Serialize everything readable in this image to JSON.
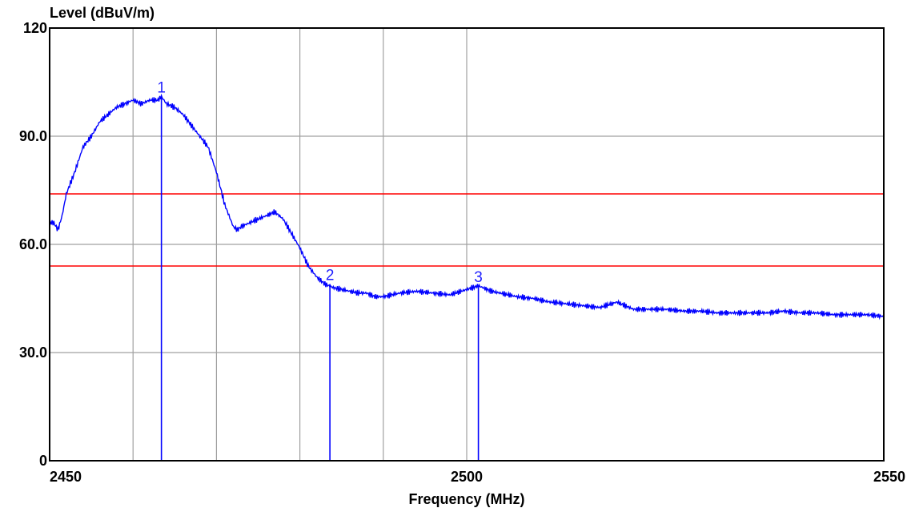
{
  "chart_data": {
    "type": "line",
    "xlabel": "Frequency (MHz)",
    "ylabel": "Level (dBuV/m)",
    "xlim": [
      2450,
      2550
    ],
    "ylim": [
      0,
      120
    ],
    "x_ticks": [
      {
        "value": 2450,
        "label": "2450"
      },
      {
        "value": 2500,
        "label": "2500"
      },
      {
        "value": 2550,
        "label": "2550"
      }
    ],
    "y_ticks": [
      {
        "value": 0,
        "label": "0"
      },
      {
        "value": 30,
        "label": "30.0"
      },
      {
        "value": 60,
        "label": "60.0"
      },
      {
        "value": 90,
        "label": "90.0"
      },
      {
        "value": 120,
        "label": "120"
      }
    ],
    "x_grid": [
      2460,
      2470,
      2480,
      2490,
      2500
    ],
    "y_grid": [
      30,
      60,
      90
    ],
    "grid": true,
    "limit_lines": [
      {
        "value": 74,
        "color": "#ff0000"
      },
      {
        "value": 54,
        "color": "#ff0000"
      }
    ],
    "markers": [
      {
        "label": "1",
        "x": 2463.4,
        "y": 101
      },
      {
        "label": "2",
        "x": 2483.6,
        "y": 49
      },
      {
        "label": "3",
        "x": 2501.4,
        "y": 48.5
      }
    ],
    "series": [
      {
        "color": "#0000ff",
        "x": [
          2450,
          2450.5,
          2451,
          2451.5,
          2452,
          2452.5,
          2453,
          2454,
          2455,
          2456,
          2457,
          2458,
          2459,
          2460,
          2461,
          2462,
          2463,
          2463.4,
          2464,
          2465,
          2466,
          2467,
          2468,
          2469,
          2470,
          2471,
          2472,
          2472.5,
          2473,
          2474,
          2475,
          2476,
          2477,
          2478,
          2479,
          2480,
          2481,
          2482,
          2483,
          2484,
          2485,
          2486,
          2487,
          2488,
          2489,
          2490,
          2492,
          2494,
          2496,
          2498,
          2500,
          2501.4,
          2503,
          2504,
          2506,
          2508,
          2510,
          2512,
          2514,
          2516,
          2518,
          2520,
          2522,
          2524,
          2526,
          2528,
          2530,
          2532,
          2534,
          2536,
          2538,
          2540,
          2542,
          2544,
          2546,
          2548,
          2550
        ],
        "y": [
          66,
          66,
          64,
          68,
          74,
          77,
          80,
          87,
          90,
          94,
          96,
          98,
          99,
          100,
          99,
          100,
          100,
          101,
          99,
          98,
          96,
          93,
          90,
          87,
          80,
          71,
          65,
          64,
          65,
          66,
          67,
          68,
          69,
          67,
          63,
          59,
          54,
          51,
          49,
          48,
          47.5,
          47,
          46.5,
          46.5,
          45.5,
          45.5,
          46.5,
          47,
          46.5,
          46,
          47.5,
          48.5,
          47,
          46.5,
          45.5,
          45,
          44,
          43.5,
          43,
          42.5,
          44,
          42,
          42,
          42,
          41.5,
          41.5,
          41,
          41,
          41,
          41,
          41.5,
          41,
          41,
          40.5,
          40.5,
          40.5,
          40
        ]
      }
    ]
  }
}
